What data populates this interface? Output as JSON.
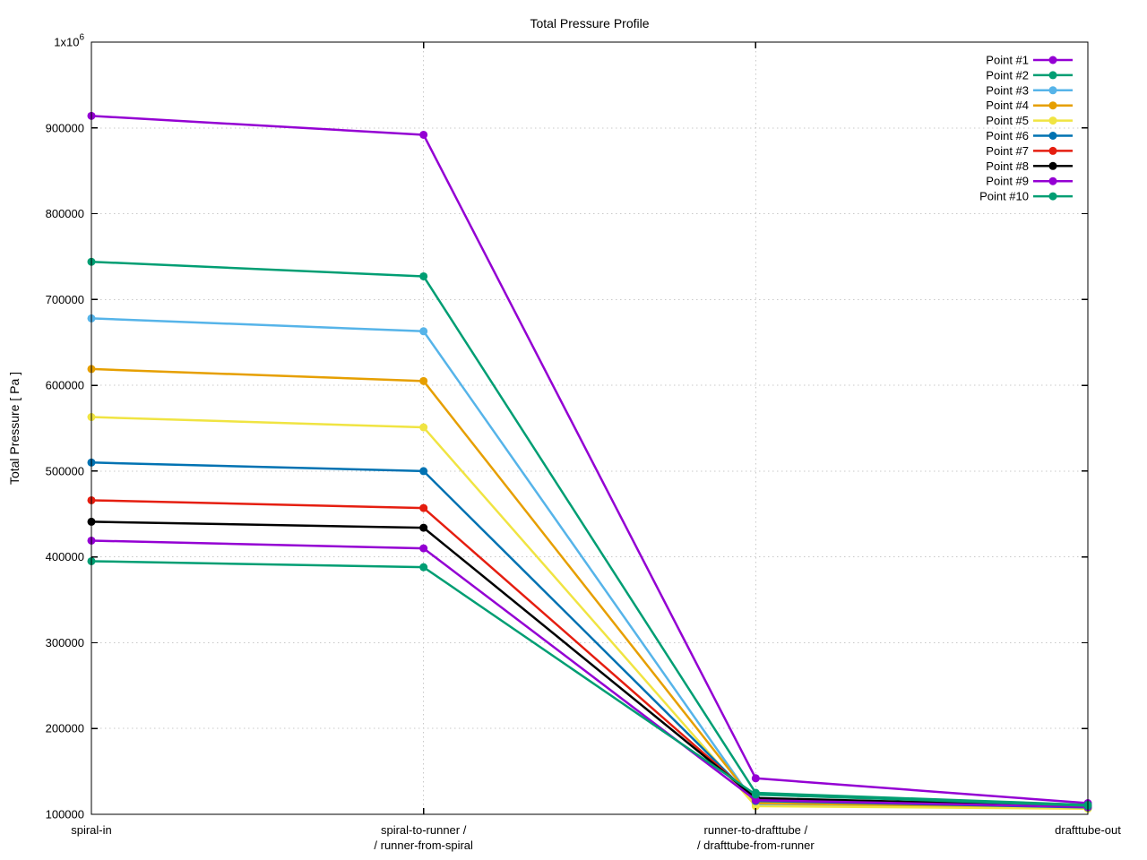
{
  "page": {
    "background": "#ffffff",
    "axis_color": "#000000",
    "grid_color": "#c9c9c9"
  },
  "chart_data": {
    "type": "line",
    "title": "Total Pressure Profile",
    "ylabel": "Total Pressure [ Pa ]",
    "xlabel": "",
    "ylim": [
      100000,
      1000000
    ],
    "grid": true,
    "legend_position": "top-right-inside",
    "categories": [
      {
        "id": "spiral-in",
        "lines": [
          "spiral-in"
        ]
      },
      {
        "id": "spiral-to-runner",
        "lines": [
          "spiral-to-runner /",
          "/ runner-from-spiral"
        ]
      },
      {
        "id": "runner-to-drafttube",
        "lines": [
          "runner-to-drafttube /",
          "/ drafttube-from-runner"
        ]
      },
      {
        "id": "drafttube-out",
        "lines": [
          "drafttube-out"
        ]
      }
    ],
    "yticks": [
      {
        "value": 100000,
        "label": "100000"
      },
      {
        "value": 200000,
        "label": "200000"
      },
      {
        "value": 300000,
        "label": "300000"
      },
      {
        "value": 400000,
        "label": "400000"
      },
      {
        "value": 500000,
        "label": "500000"
      },
      {
        "value": 600000,
        "label": "600000"
      },
      {
        "value": 700000,
        "label": "700000"
      },
      {
        "value": 800000,
        "label": "800000"
      },
      {
        "value": 900000,
        "label": "900000"
      },
      {
        "value": 1000000,
        "label": "1x10",
        "exp": "6"
      }
    ],
    "series": [
      {
        "name": "Point #1",
        "color": "#9400D3",
        "values": [
          914000,
          892000,
          142000,
          113000
        ]
      },
      {
        "name": "Point #2",
        "color": "#009E73",
        "values": [
          744000,
          727000,
          125000,
          111000
        ]
      },
      {
        "name": "Point #3",
        "color": "#56B4E9",
        "values": [
          678000,
          663000,
          111500,
          107000
        ]
      },
      {
        "name": "Point #4",
        "color": "#E69F00",
        "values": [
          619000,
          605000,
          113000,
          107500
        ]
      },
      {
        "name": "Point #5",
        "color": "#F0E442",
        "values": [
          563000,
          551000,
          109500,
          106500
        ]
      },
      {
        "name": "Point #6",
        "color": "#0072B2",
        "values": [
          510000,
          500000,
          115500,
          108000
        ]
      },
      {
        "name": "Point #7",
        "color": "#E51E10",
        "values": [
          466000,
          457000,
          118000,
          109000
        ]
      },
      {
        "name": "Point #8",
        "color": "#000000",
        "values": [
          441000,
          434000,
          119000,
          109500
        ]
      },
      {
        "name": "Point #9",
        "color": "#9400D3",
        "values": [
          419000,
          410000,
          116500,
          108500
        ]
      },
      {
        "name": "Point #10",
        "color": "#009E73",
        "values": [
          395000,
          388000,
          123000,
          110000
        ]
      }
    ]
  }
}
